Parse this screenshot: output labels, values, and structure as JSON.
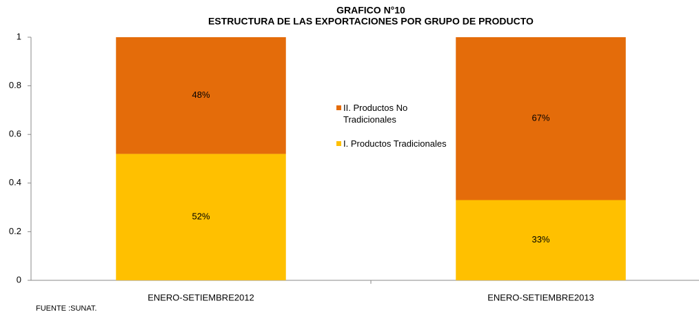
{
  "chart_data": {
    "type": "stacked_bar",
    "title": "GRAFICO N°10",
    "subtitle": "ESTRUCTURA DE LAS EXPORTACIONES POR GRUPO DE PRODUCTO",
    "note": "FUENTE :SUNAT.",
    "categories": [
      "ENERO-SETIEMBRE2012",
      "ENERO-SETIEMBRE2013"
    ],
    "series": [
      {
        "name": "I. Productos Tradicionales",
        "color": "#FFC000",
        "values": [
          0.52,
          0.33
        ],
        "value_labels": [
          "52%",
          "33%"
        ]
      },
      {
        "name": "II. Productos No Tradicionales",
        "color": "#E46C0A",
        "values": [
          0.48,
          0.67
        ],
        "value_labels": [
          "48%",
          "67%"
        ]
      }
    ],
    "ylim": [
      0,
      1
    ],
    "yticks": [
      0,
      0.2,
      0.4,
      0.6,
      0.8,
      1
    ]
  }
}
